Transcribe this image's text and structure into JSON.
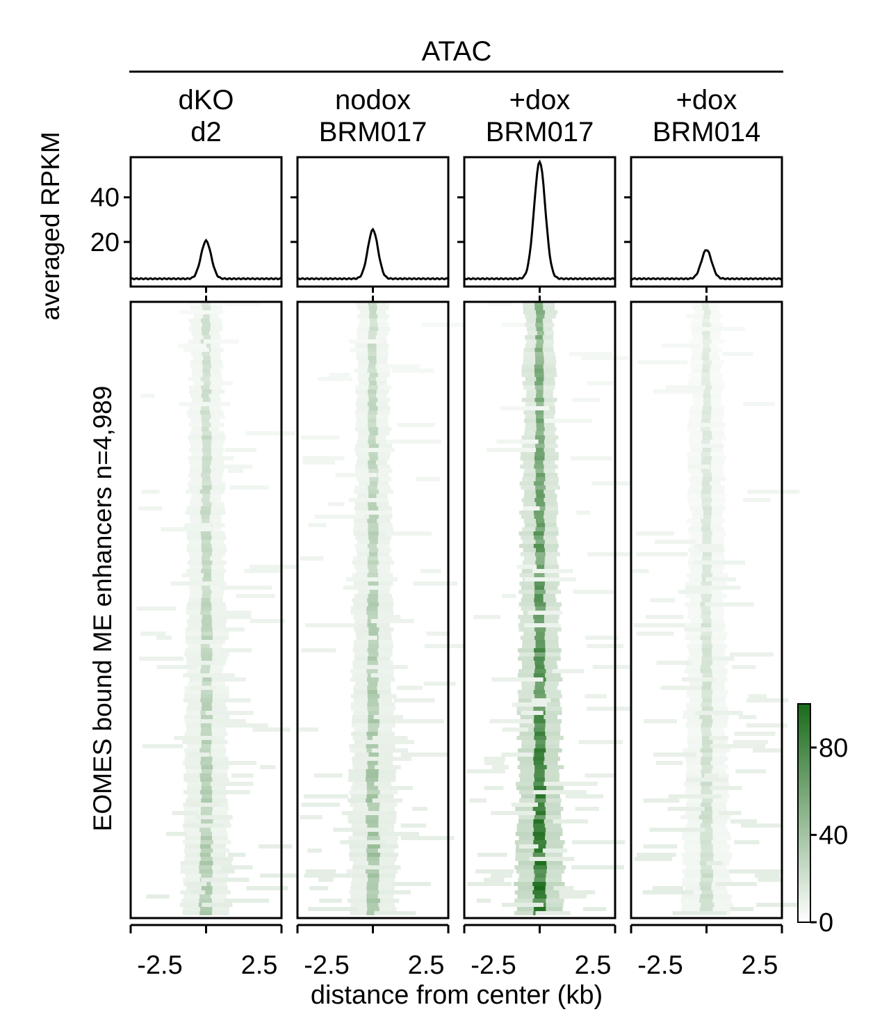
{
  "figure": {
    "group_title": "ATAC",
    "profile_ylabel": "averaged RPKM",
    "heatmap_ylabel": "EOMES bound ME enhancers n=4,989",
    "xlabel": "distance from center (kb)"
  },
  "colors": {
    "heat_low": "#ffffff",
    "heat_high": "#1a6b1a",
    "profile_line": "#000000",
    "axis": "#000000"
  },
  "chart_data": {
    "type": "heatmap",
    "title": "ATAC",
    "xlabel": "distance from center (kb)",
    "profile_ylabel": "averaged RPKM",
    "heatmap_ylabel": "EOMES bound ME enhancers n=4,989",
    "xlim": [
      -2.5,
      2.5
    ],
    "x_ticks": [
      "-2.5",
      "2.5"
    ],
    "profile_ylim": [
      0,
      58
    ],
    "profile_y_ticks": [
      "20",
      "40"
    ],
    "colorbar": {
      "min": 0,
      "max": 100,
      "ticks": [
        "0",
        "40",
        "80"
      ],
      "cmap": "white-to-green"
    },
    "n_regions": 4989,
    "samples": [
      {
        "line1": "dKO",
        "line2": "d2",
        "profile": {
          "baseline": 3.5,
          "peak": 20.5,
          "width_kb": 0.2
        },
        "heatmap_center_intensity": 28
      },
      {
        "line1": "nodox",
        "line2": "BRM017",
        "profile": {
          "baseline": 3.5,
          "peak": 25.5,
          "width_kb": 0.2
        },
        "heatmap_center_intensity": 33
      },
      {
        "line1": "+dox",
        "line2": "BRM017",
        "profile": {
          "baseline": 3.5,
          "peak": 56,
          "width_kb": 0.22
        },
        "heatmap_center_intensity": 72
      },
      {
        "line1": "+dox",
        "line2": "BRM014",
        "profile": {
          "baseline": 3.5,
          "peak": 16.5,
          "width_kb": 0.2
        },
        "heatmap_center_intensity": 18
      }
    ]
  }
}
